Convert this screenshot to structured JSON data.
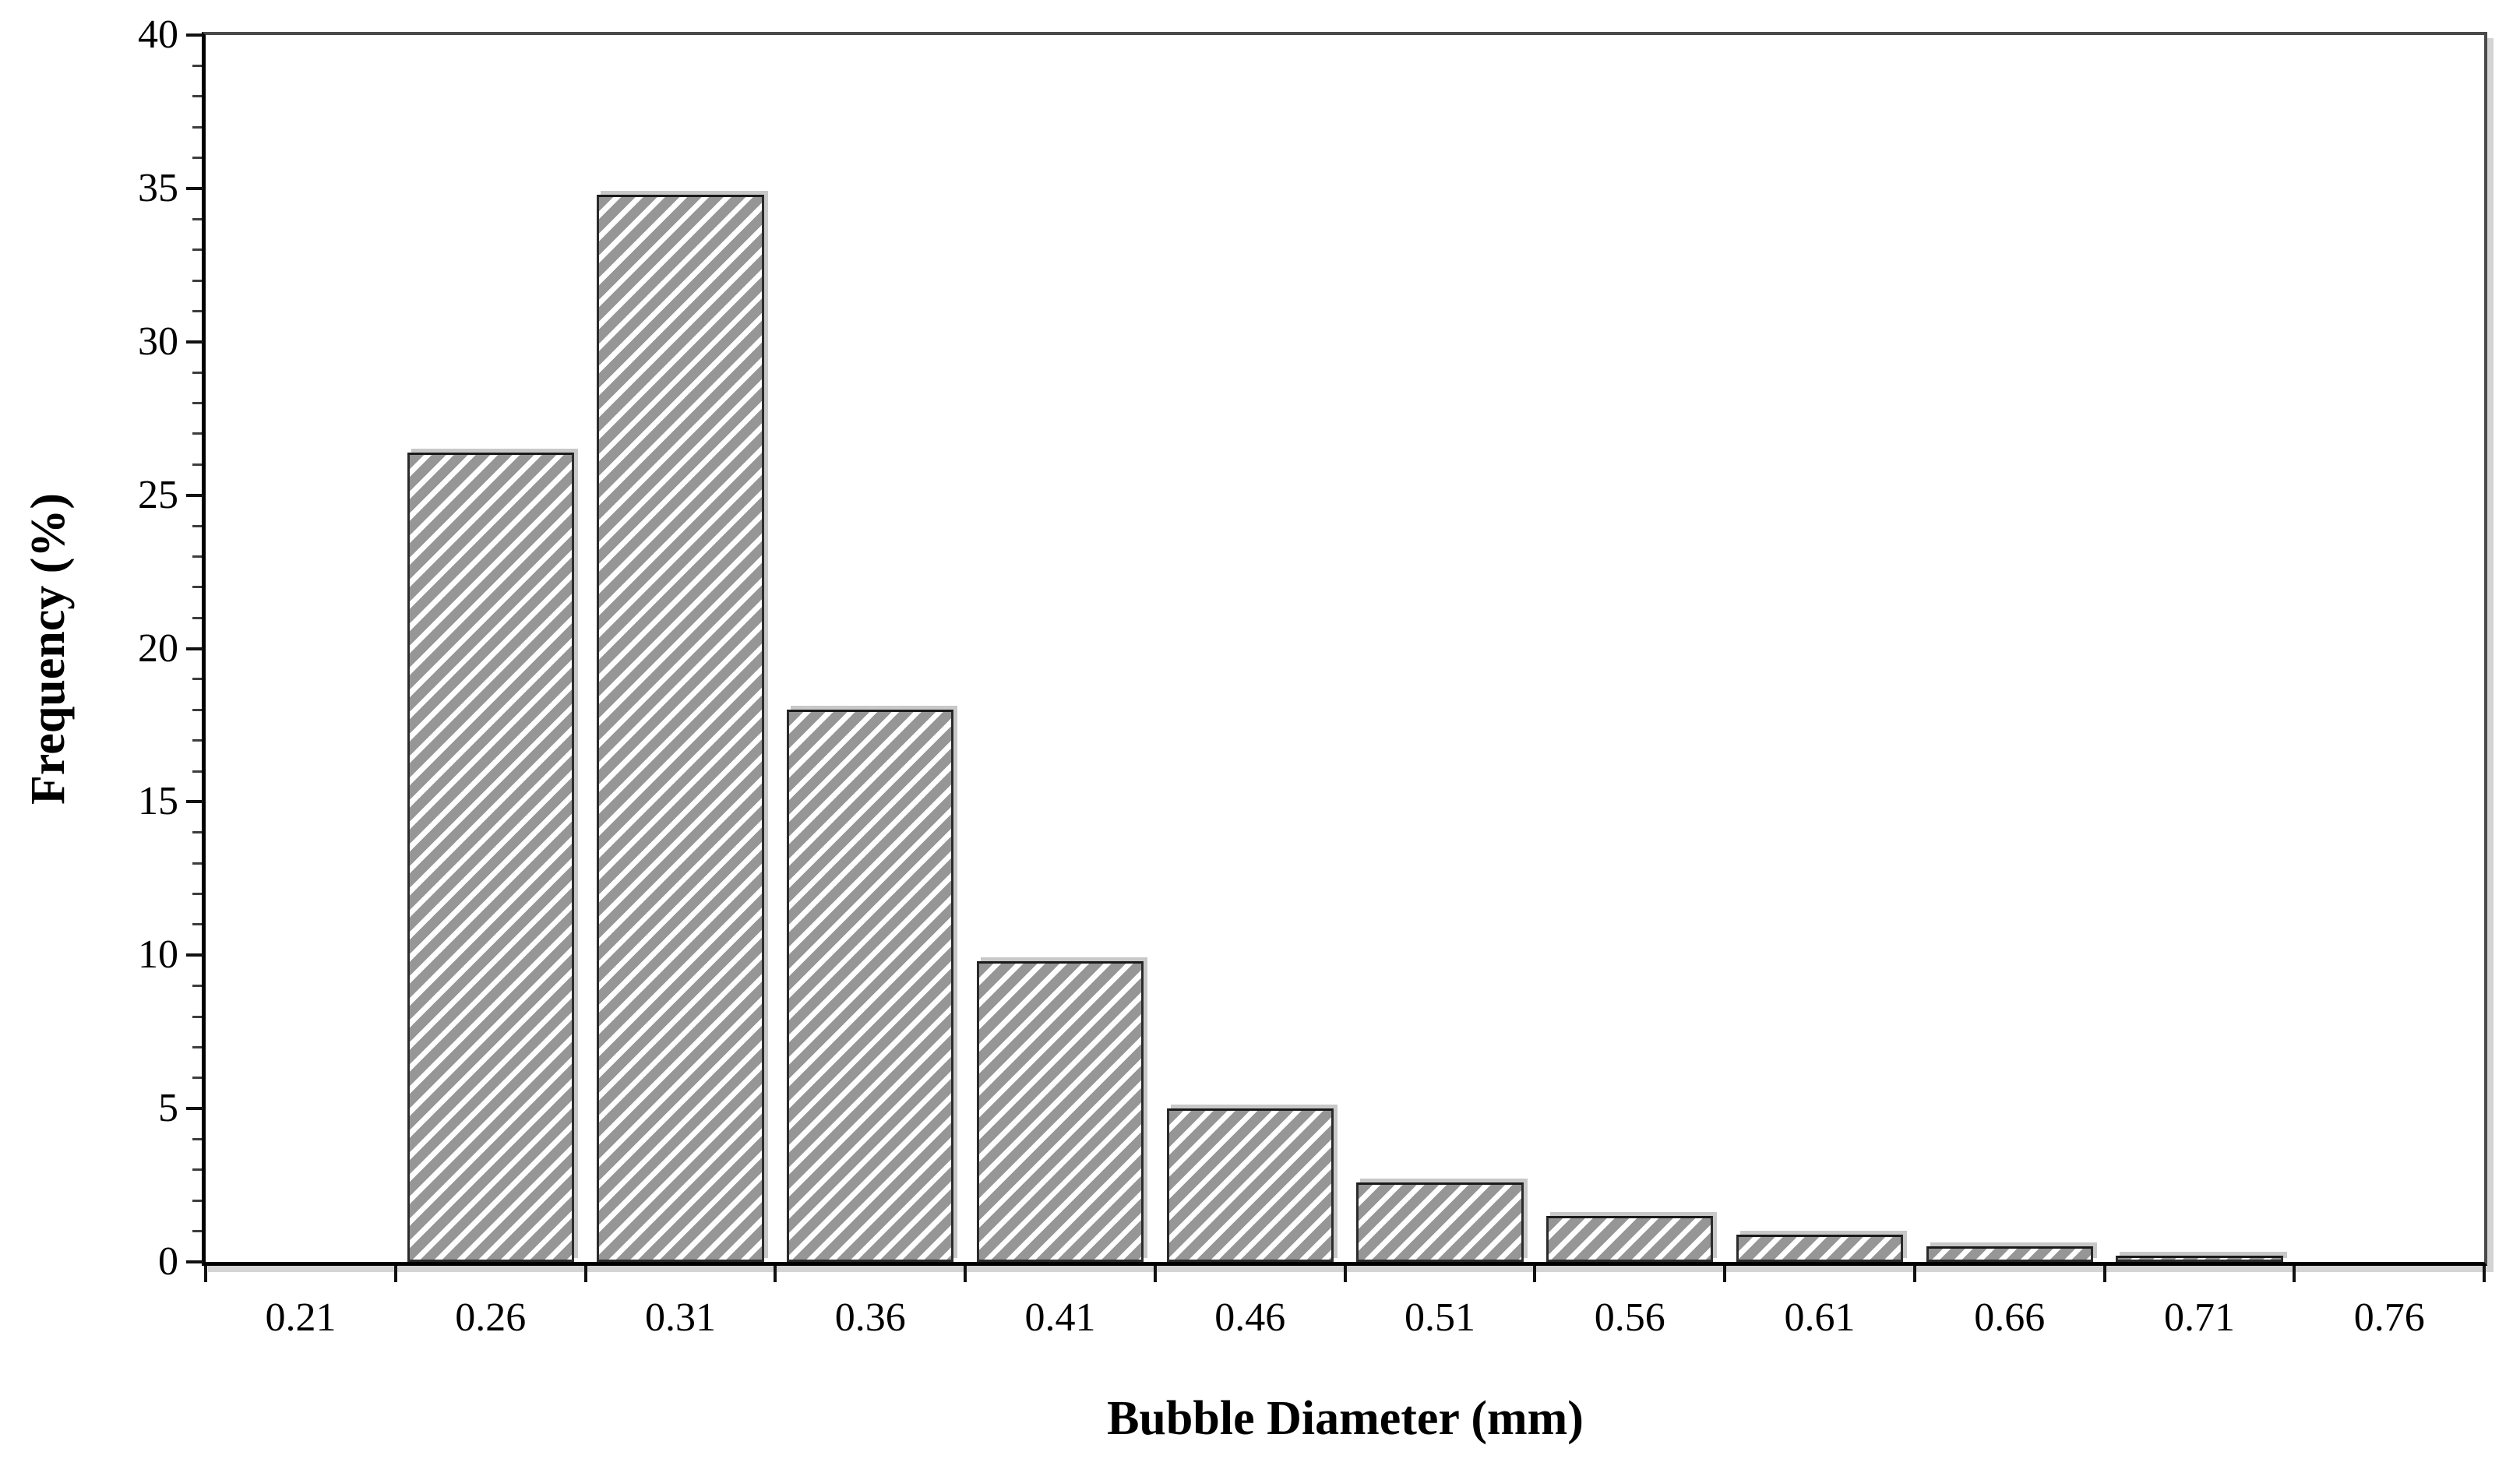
{
  "chart_data": {
    "type": "bar",
    "title": "",
    "xlabel": "Bubble Diameter (mm)",
    "ylabel": "Frequency (%)",
    "categories": [
      "0.21",
      "0.26",
      "0.31",
      "0.36",
      "0.41",
      "0.46",
      "0.51",
      "0.56",
      "0.61",
      "0.66",
      "0.71",
      "0.76"
    ],
    "values": [
      0,
      26.4,
      34.8,
      18.0,
      9.8,
      5.0,
      2.6,
      1.5,
      0.9,
      0.5,
      0.2,
      0
    ],
    "ylim": [
      0,
      40
    ],
    "y_major_tick_step": 5,
    "y_minor_tick_step": 1,
    "y_major_tick_labels": [
      "0",
      "5",
      "10",
      "15",
      "20",
      "25",
      "30",
      "35",
      "40"
    ],
    "legend": "none",
    "grid": "off",
    "bar_style": {
      "hatch": "forward-diagonal-white-stripes",
      "fill_base": "#969696",
      "stripe_color": "#ffffff",
      "border_color": "#2b2b2b",
      "shadow_color": "#c8c8c8",
      "gap_ratio": 0.08
    },
    "frame": {
      "axis_color": "#000000",
      "border_color": "#4a4a4a",
      "shadow_color": "#d4d4d4",
      "background": "#ffffff"
    },
    "text_color": "#000000"
  }
}
